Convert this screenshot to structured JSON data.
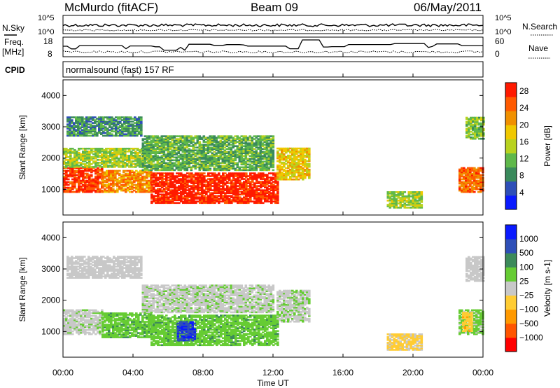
{
  "header": {
    "station": "McMurdo (fitACF)",
    "beam": "Beam 09",
    "date": "06/May/2011"
  },
  "summary_panels": {
    "nsky_label": "N.Sky",
    "nsearch_label": "N.Search",
    "noise_ticks": [
      "10^5",
      "10^0"
    ],
    "freq_label": "Freq.",
    "freq_unit": "[MHz]",
    "freq_ticks": [
      "18",
      "8"
    ],
    "nave_label": "Nave",
    "nave_ticks": [
      "60",
      "0"
    ],
    "cpid_label": "CPID",
    "cpid_value": "normalsound (fast) 157 RF"
  },
  "x_axis": {
    "label": "Time UT",
    "ticks": [
      "00:00",
      "04:00",
      "08:00",
      "12:00",
      "16:00",
      "20:00",
      "00:00"
    ]
  },
  "chart_data": [
    {
      "type": "heatmap",
      "name": "power",
      "ylabel": "Slant Range [km]",
      "yticks": [
        "1000",
        "2000",
        "3000",
        "4000"
      ],
      "ylim": [
        180,
        4500
      ],
      "xlim_hours": [
        0,
        24
      ],
      "colorbar_label": "Power [dB]",
      "colorbar_ticks": [
        "4",
        "8",
        "12",
        "16",
        "20",
        "24",
        "28"
      ],
      "colorbar_range": [
        0,
        30
      ],
      "colorbar_colors": [
        "#0a1aff",
        "#2e4fb8",
        "#3a8a5c",
        "#5fb84a",
        "#b8d21e",
        "#f0c800",
        "#f09000",
        "#ff5a00",
        "#ff1a00"
      ],
      "echo_regions": [
        {
          "t0": 0.0,
          "t1": 2.2,
          "r0": 900,
          "r1": 1700,
          "db": 27
        },
        {
          "t0": 2.2,
          "t1": 5.0,
          "r0": 900,
          "r1": 1600,
          "db": 22
        },
        {
          "t0": 5.0,
          "t1": 12.2,
          "r0": 550,
          "r1": 1500,
          "db": 29
        },
        {
          "t0": 12.2,
          "t1": 14.0,
          "r0": 1300,
          "r1": 2300,
          "db": 18
        },
        {
          "t0": 0.0,
          "t1": 5.0,
          "r0": 1700,
          "r1": 2300,
          "db": 14
        },
        {
          "t0": 0.2,
          "t1": 4.5,
          "r0": 2700,
          "r1": 3300,
          "db": 9
        },
        {
          "t0": 4.5,
          "t1": 12.0,
          "r0": 1600,
          "r1": 2700,
          "db": 11
        },
        {
          "t0": 18.5,
          "t1": 20.5,
          "r0": 400,
          "r1": 900,
          "db": 14
        },
        {
          "t0": 22.6,
          "t1": 24.0,
          "r0": 900,
          "r1": 1700,
          "db": 24
        },
        {
          "t0": 23.0,
          "t1": 24.0,
          "r0": 2600,
          "r1": 3300,
          "db": 13
        }
      ]
    },
    {
      "type": "heatmap",
      "name": "velocity",
      "ylabel": "Slant Range [km]",
      "yticks": [
        "1000",
        "2000",
        "3000",
        "4000"
      ],
      "ylim": [
        180,
        4500
      ],
      "xlim_hours": [
        0,
        24
      ],
      "colorbar_label": "Velocity [m s-1]",
      "colorbar_ticks": [
        "1000",
        "500",
        "100",
        "25",
        "-25",
        "-100",
        "-500",
        "-1000"
      ],
      "colorbar_range": [
        -1200,
        1200
      ],
      "colorbar_colors": [
        "#ff0000",
        "#ff5500",
        "#ff9900",
        "#ffcc33",
        "#c8c8c8",
        "#66cc33",
        "#3c8a5a",
        "#2e4fb8",
        "#0a1aff"
      ],
      "echo_regions": [
        {
          "t0": 0.0,
          "t1": 2.2,
          "r0": 900,
          "r1": 1700,
          "v": 50
        },
        {
          "t0": 2.2,
          "t1": 5.0,
          "r0": 800,
          "r1": 1600,
          "v": 300
        },
        {
          "t0": 5.0,
          "t1": 12.2,
          "r0": 550,
          "r1": 1500,
          "v": 300
        },
        {
          "t0": 6.5,
          "t1": 7.5,
          "r0": 700,
          "r1": 1300,
          "v": 900
        },
        {
          "t0": 12.2,
          "t1": 14.0,
          "r0": 1300,
          "r1": 2300,
          "v": 80
        },
        {
          "t0": 0.2,
          "t1": 4.5,
          "r0": 2700,
          "r1": 3400,
          "v": 0
        },
        {
          "t0": 4.5,
          "t1": 12.0,
          "r0": 1600,
          "r1": 2500,
          "v": 60
        },
        {
          "t0": 18.5,
          "t1": 20.5,
          "r0": 400,
          "r1": 900,
          "v": -200
        },
        {
          "t0": 22.6,
          "t1": 24.0,
          "r0": 900,
          "r1": 1700,
          "v": 200
        },
        {
          "t0": 22.8,
          "t1": 23.4,
          "r0": 1000,
          "r1": 1600,
          "v": -300
        },
        {
          "t0": 23.0,
          "t1": 24.0,
          "r0": 2600,
          "r1": 3400,
          "v": 0
        }
      ]
    }
  ]
}
